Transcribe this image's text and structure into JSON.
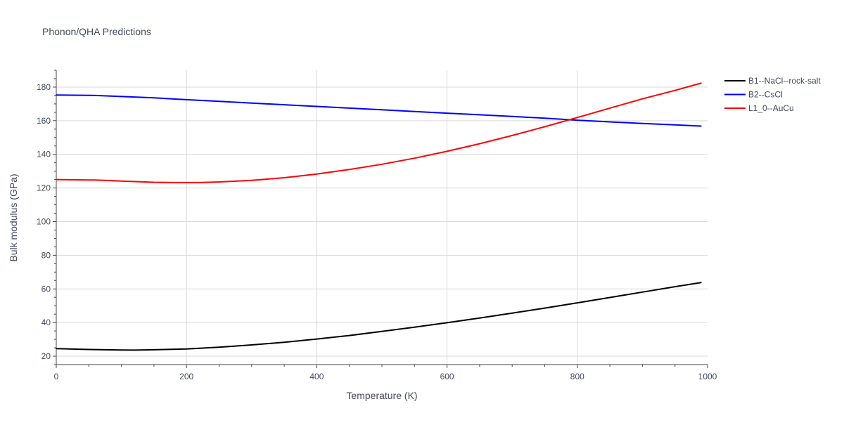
{
  "chart_data": {
    "type": "line",
    "title": "Phonon/QHA Predictions",
    "xlabel": "Temperature (K)",
    "ylabel": "Bulk modulus (GPa)",
    "xlim": [
      0,
      1000
    ],
    "ylim": [
      15,
      190
    ],
    "x_ticks": [
      0,
      200,
      400,
      600,
      800,
      1000
    ],
    "x_tick_labels": [
      "0",
      "200",
      "400",
      "600",
      "800",
      "1000"
    ],
    "y_ticks": [
      20,
      40,
      60,
      80,
      100,
      120,
      140,
      160,
      180
    ],
    "y_tick_labels": [
      "20",
      "40",
      "60",
      "80",
      "100",
      "120",
      "140",
      "160",
      "180"
    ],
    "grid": true,
    "legend_position": "top-right",
    "series": [
      {
        "name": "B1--NaCl--rock-salt",
        "color": "#000000",
        "x": [
          0,
          50,
          100,
          120,
          150,
          200,
          250,
          300,
          350,
          400,
          450,
          500,
          550,
          600,
          650,
          700,
          750,
          800,
          850,
          900,
          950,
          990
        ],
        "y": [
          24.5,
          24.0,
          23.7,
          23.6,
          23.8,
          24.3,
          25.3,
          26.7,
          28.3,
          30.2,
          32.3,
          34.7,
          37.2,
          39.9,
          42.7,
          45.6,
          48.6,
          51.7,
          54.9,
          58.1,
          61.3,
          63.8
        ]
      },
      {
        "name": "B2--CsCl",
        "color": "#0000ff",
        "x": [
          0,
          60,
          100,
          150,
          200,
          250,
          300,
          350,
          400,
          450,
          500,
          550,
          600,
          650,
          700,
          750,
          800,
          850,
          900,
          950,
          990
        ],
        "y": [
          175.3,
          175.0,
          174.4,
          173.6,
          172.5,
          171.5,
          170.5,
          169.5,
          168.5,
          167.5,
          166.5,
          165.5,
          164.5,
          163.5,
          162.5,
          161.5,
          160.3,
          159.3,
          158.4,
          157.5,
          156.8
        ]
      },
      {
        "name": "L1_0--AuCu",
        "color": "#ff0000",
        "x": [
          0,
          60,
          100,
          150,
          180,
          220,
          250,
          300,
          350,
          400,
          450,
          500,
          550,
          600,
          650,
          700,
          750,
          800,
          850,
          900,
          950,
          990
        ],
        "y": [
          125.0,
          124.7,
          124.1,
          123.4,
          123.2,
          123.2,
          123.6,
          124.5,
          126.1,
          128.3,
          131.0,
          134.1,
          137.7,
          141.8,
          146.3,
          151.2,
          156.4,
          161.9,
          167.5,
          173.0,
          178.0,
          182.3
        ]
      }
    ]
  }
}
